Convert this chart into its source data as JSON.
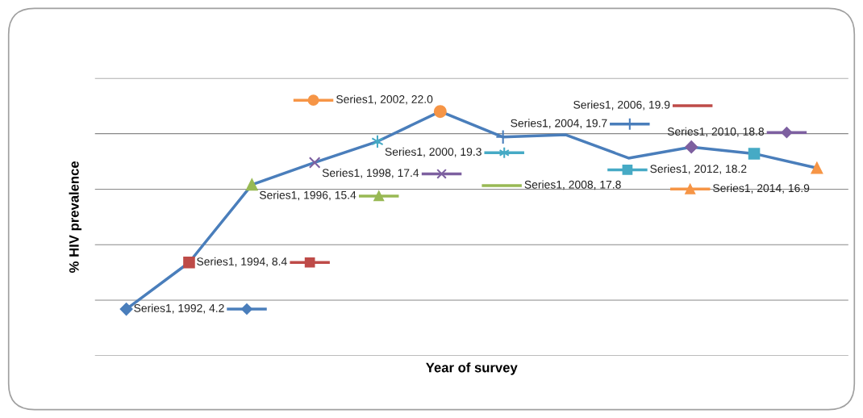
{
  "chart_data": {
    "type": "line",
    "xlabel": "Year of survey",
    "ylabel": "% HIV prevalence",
    "categories": [
      null,
      null,
      null,
      null,
      null,
      null,
      null,
      null,
      null,
      null,
      null,
      null
    ],
    "ylim": [
      0,
      25
    ],
    "yticks": [
      {
        "value": 0,
        "label": null
      },
      {
        "value": 5,
        "label": null
      },
      {
        "value": 10,
        "label": null
      },
      {
        "value": 15,
        "label": null
      },
      {
        "value": 20,
        "label": null
      },
      {
        "value": 25,
        "label": null
      }
    ],
    "grid": "y",
    "tick_labels": false,
    "series": [
      {
        "color": "#4a7ebb",
        "values": [
          4.2,
          8.4,
          15.4,
          17.4,
          19.3,
          22.0,
          19.7,
          19.9,
          17.8,
          18.8,
          18.2,
          16.9
        ],
        "colors": [
          "#4a7ebb",
          "#be4b48",
          "#98b954",
          "#7d60a0",
          "#46aac5",
          "#f69546",
          "#4a7ebb",
          "#be4b48",
          "#98b954",
          "#7d60a0",
          "#46aac5",
          "#f69546"
        ],
        "marker": [
          "diamond",
          "square",
          "triangle",
          "x",
          "star",
          "circle",
          "plus",
          "none",
          "none",
          "diamond",
          "square",
          "triangle"
        ],
        "value_labels": [
          "Series1, 1992, 4.2",
          "Series1, 1994, 8.4",
          "Series1, 1996, 15.4",
          "Series1, 1998, 17.4",
          "Series1, 2000, 19.3",
          "Series1, 2002, 22.0",
          "Series1, 2004, 19.7",
          "Series1, 2006, 19.9",
          "Series1, 2008, 17.8",
          "Series1, 2010, 18.8",
          "Series1, 2012, 18.2",
          "Series1, 2014, 16.9"
        ]
      }
    ]
  }
}
